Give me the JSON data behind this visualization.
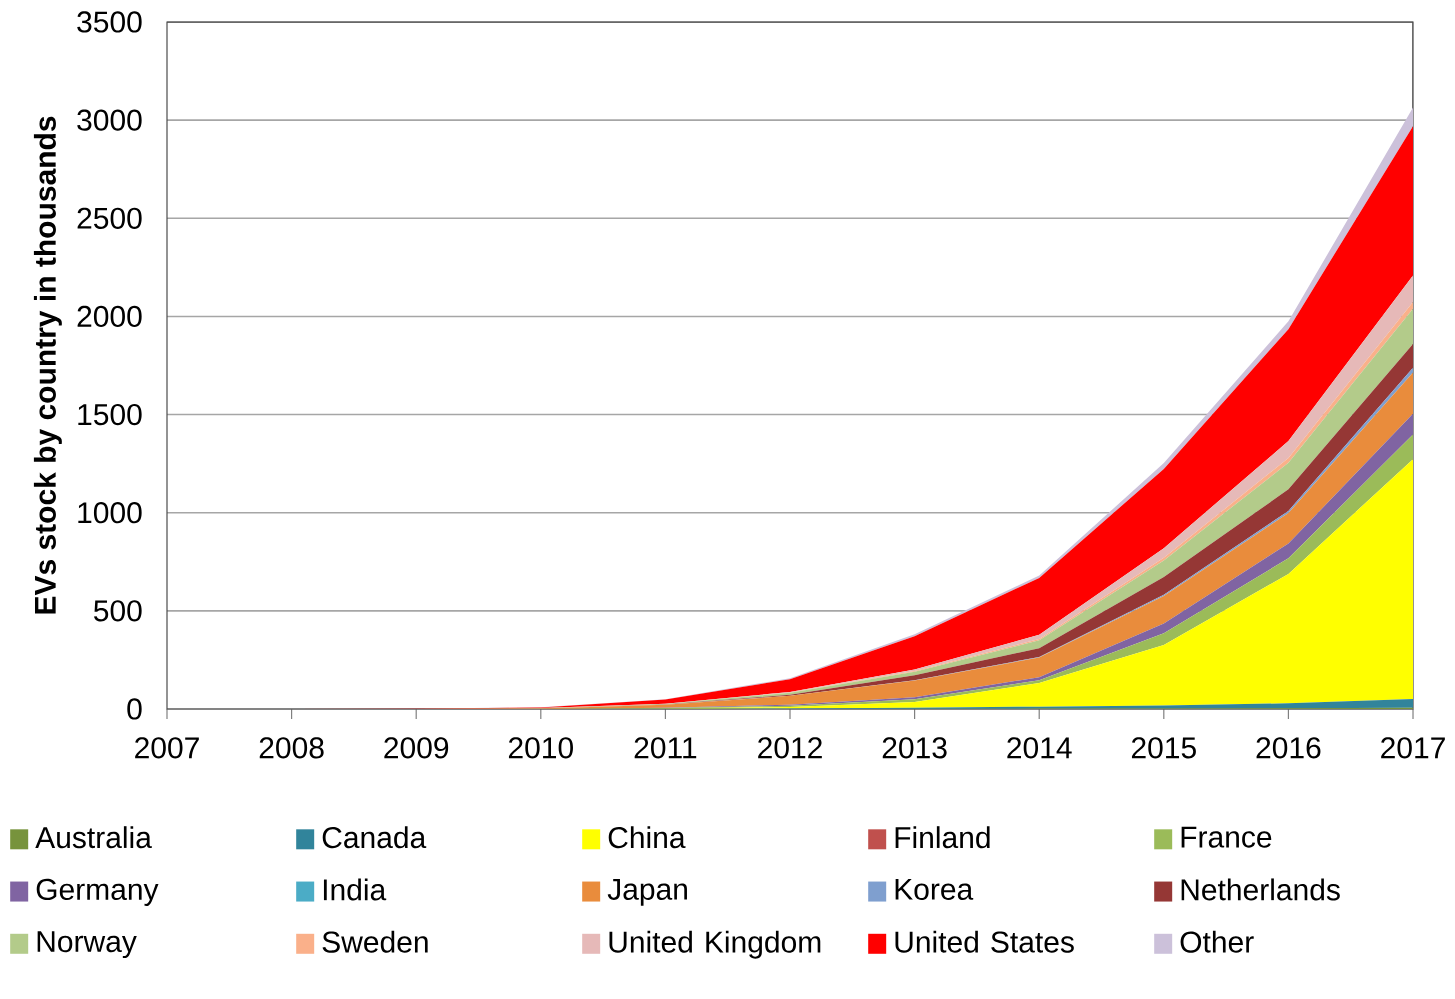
{
  "chart_data": {
    "type": "area",
    "stacked": true,
    "ylabel": "EVs stock by country in thousands",
    "x": [
      2007,
      2008,
      2009,
      2010,
      2011,
      2012,
      2013,
      2014,
      2015,
      2016,
      2017
    ],
    "xlim": [
      2007,
      2017
    ],
    "xticks": [
      2007,
      2008,
      2009,
      2010,
      2011,
      2012,
      2013,
      2014,
      2015,
      2016,
      2017
    ],
    "ylim": [
      0,
      3500
    ],
    "yticks": [
      0,
      500,
      1000,
      1500,
      2000,
      2500,
      3000,
      3500
    ],
    "grid": "y",
    "legend": "bottom",
    "series": [
      {
        "name": "Australia",
        "color": "#77933c",
        "values": [
          0,
          0,
          0,
          0,
          0,
          0,
          1,
          2,
          3,
          4,
          6
        ]
      },
      {
        "name": "Canada",
        "color": "#31849b",
        "values": [
          0,
          0,
          0,
          0,
          1,
          3,
          5,
          10,
          15,
          25,
          45
        ]
      },
      {
        "name": "China",
        "color": "#ffff00",
        "values": [
          0,
          0,
          0,
          0,
          1,
          7,
          30,
          120,
          308,
          659,
          1222
        ]
      },
      {
        "name": "Finland",
        "color": "#c0504d",
        "values": [
          null,
          null,
          null,
          null,
          null,
          null,
          null,
          null,
          null,
          null,
          null
        ]
      },
      {
        "name": "France",
        "color": "#9bbb59",
        "values": [
          0,
          0,
          0,
          0,
          3,
          7,
          14,
          15,
          60,
          80,
          125
        ]
      },
      {
        "name": "Germany",
        "color": "#8064a2",
        "values": [
          0,
          0,
          0,
          0,
          2,
          5,
          10,
          15,
          50,
          75,
          106
        ]
      },
      {
        "name": "India",
        "color": "#4bacc6",
        "values": [
          null,
          null,
          null,
          null,
          null,
          null,
          null,
          null,
          null,
          null,
          null
        ]
      },
      {
        "name": "Japan",
        "color": "#e98c3c",
        "values": [
          0,
          0,
          0,
          3,
          15,
          45,
          85,
          100,
          140,
          155,
          210
        ]
      },
      {
        "name": "Korea",
        "color": "#7f9fcf",
        "values": [
          0,
          0,
          0,
          0,
          0,
          1,
          2,
          3,
          6,
          11,
          25
        ]
      },
      {
        "name": "Netherlands",
        "color": "#953735",
        "values": [
          0,
          0,
          0,
          0,
          1,
          5,
          25,
          45,
          90,
          110,
          120
        ]
      },
      {
        "name": "Norway",
        "color": "#b3cb8a",
        "values": [
          0,
          0,
          0,
          1,
          3,
          10,
          18,
          40,
          85,
          135,
          180
        ]
      },
      {
        "name": "Sweden",
        "color": "#fab08a",
        "values": [
          0,
          0,
          0,
          0,
          0,
          1,
          3,
          7,
          13,
          25,
          35
        ]
      },
      {
        "name": "United Kingdom",
        "color": "#e6b9b8",
        "values": [
          0,
          0,
          0,
          1,
          1,
          3,
          8,
          21,
          49,
          86,
          135
        ]
      },
      {
        "name": "United States",
        "color": "#ff0000",
        "values": [
          0,
          0,
          1,
          3,
          21,
          65,
          170,
          290,
          404,
          570,
          760
        ]
      },
      {
        "name": "Other",
        "color": "#ccc1da",
        "values": [
          0,
          0,
          0,
          1,
          2,
          5,
          10,
          12,
          30,
          40,
          95
        ]
      }
    ]
  }
}
